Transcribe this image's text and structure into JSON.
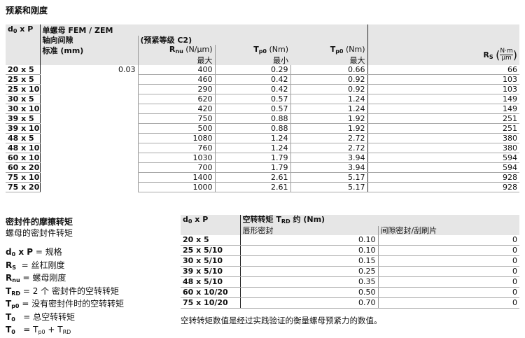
{
  "title": "预紧和刚度",
  "table1": {
    "col_size": "d0 x P",
    "nut_type": "单螺母 FEM / ZEM",
    "axial_clearance": "轴向间隙",
    "standard": "标准 (mm)",
    "preload_class": "(预紧等级 C2)",
    "rnu_unit": "(N/μm)",
    "tp0_unit": "(Nm)",
    "max": "最大",
    "min": "最小",
    "rs_num": "N·m",
    "rs_den": "μm",
    "clearance_value": "0.03",
    "rows": [
      [
        "20 x 5",
        "400",
        "0.29",
        "0.66",
        "66"
      ],
      [
        "25 x 5",
        "460",
        "0.42",
        "0.92",
        "103"
      ],
      [
        "25 x 10",
        "290",
        "0.42",
        "0.92",
        "103"
      ],
      [
        "30 x 5",
        "620",
        "0.57",
        "1.24",
        "149"
      ],
      [
        "30 x 10",
        "420",
        "0.57",
        "1.24",
        "149"
      ],
      [
        "39 x 5",
        "750",
        "0.88",
        "1.92",
        "251"
      ],
      [
        "39 x 10",
        "500",
        "0.88",
        "1.92",
        "251"
      ],
      [
        "48 x 5",
        "1080",
        "1.24",
        "2.72",
        "380"
      ],
      [
        "48 x 10",
        "760",
        "1.24",
        "2.72",
        "380"
      ],
      [
        "60 x 10",
        "1030",
        "1.79",
        "3.94",
        "594"
      ],
      [
        "60 x 20",
        "700",
        "1.79",
        "3.94",
        "594"
      ],
      [
        "75 x 10",
        "1400",
        "2.61",
        "5.17",
        "928"
      ],
      [
        "75 x 20",
        "1000",
        "2.61",
        "5.17",
        "928"
      ]
    ]
  },
  "legend": {
    "heading": "密封件的摩擦转矩",
    "subheading": "螺母的密封件转矩",
    "items": [
      [
        "= 规格"
      ],
      [
        "=  丝杠刚度"
      ],
      [
        "=  螺母刚度"
      ],
      [
        "=  2 个 密封件的空转转矩"
      ],
      [
        "=  没有密封件时的空转转矩"
      ],
      [
        "=  总空转转矩"
      ],
      [
        "=  "
      ]
    ]
  },
  "table2": {
    "col_size": "d0 x P",
    "header": "空转转矩",
    "header_suffix": "约 (Nm)",
    "lip_seal": "唇形密封",
    "gap_seal": "间隙密封/刮刷片",
    "rows": [
      [
        "20 x 5",
        "0.10",
        "0"
      ],
      [
        "25 x 5/10",
        "0.10",
        "0"
      ],
      [
        "30 x 5/10",
        "0.15",
        "0"
      ],
      [
        "39 x 5/10",
        "0.25",
        "0"
      ],
      [
        "48 x 5/10",
        "0.35",
        "0"
      ],
      [
        "60 x 10/20",
        "0.50",
        "0"
      ],
      [
        "75 x 10/20",
        "0.70",
        "0"
      ]
    ],
    "footnote": "空转转矩数值是经过实践验证的衡量螺母预紧力的数值。"
  }
}
